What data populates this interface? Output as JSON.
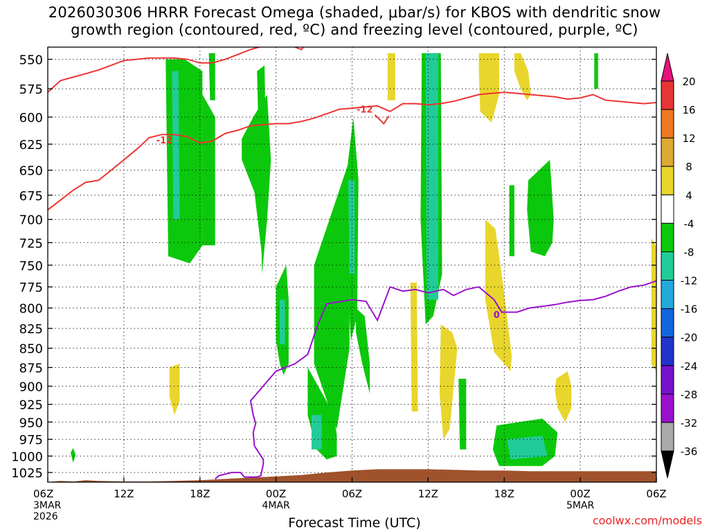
{
  "title": {
    "line1": "2026030306 HRRR Forecast Omega (shaded, μbar/s) for KBOS with dendritic snow",
    "line2": "growth region (contoured, red, ºC) and freezing level (contoured, purple, ºC)"
  },
  "credit": "coolwx.com/models",
  "chart_data": {
    "type": "heatmap",
    "xlabel": "Forecast Time (UTC)",
    "ylabel": "",
    "x_range_hours": [
      0,
      48
    ],
    "y_range_mb": [
      540,
      1040
    ],
    "y_scale": "log-pressure (reversed)",
    "grid": true,
    "x_ticks": [
      {
        "hour": 0,
        "label": "06Z",
        "sub": [
          "3MAR",
          "2026"
        ]
      },
      {
        "hour": 6,
        "label": "12Z",
        "sub": []
      },
      {
        "hour": 12,
        "label": "18Z",
        "sub": []
      },
      {
        "hour": 18,
        "label": "00Z",
        "sub": [
          "4MAR"
        ]
      },
      {
        "hour": 24,
        "label": "06Z",
        "sub": []
      },
      {
        "hour": 30,
        "label": "12Z",
        "sub": []
      },
      {
        "hour": 36,
        "label": "18Z",
        "sub": []
      },
      {
        "hour": 42,
        "label": "00Z",
        "sub": [
          "5MAR"
        ]
      },
      {
        "hour": 48,
        "label": "06Z",
        "sub": []
      }
    ],
    "y_ticks": [
      550,
      575,
      600,
      625,
      650,
      675,
      700,
      725,
      750,
      775,
      800,
      825,
      850,
      875,
      900,
      925,
      950,
      975,
      1000,
      1025
    ],
    "colorbar": {
      "boundaries": [
        20,
        16,
        12,
        8,
        4,
        -4,
        -8,
        -12,
        -16,
        -20,
        -24,
        -28,
        -32,
        -36
      ],
      "colors": [
        "#e8127a",
        "#e53535",
        "#ee7722",
        "#ddaa33",
        "#e8d62c",
        "#ffffff",
        "#0cc80c",
        "#22cc99",
        "#22aadd",
        "#1166dd",
        "#2233cc",
        "#7711cc",
        "#9911cc",
        "#aaaaaa",
        "#000000"
      ]
    },
    "shading_colors": {
      "green": "#0cc80c",
      "teal": "#22cc99",
      "yellow": "#e8d62c",
      "ground": "#a0522d"
    },
    "omega_regions": [
      {
        "level": -8,
        "x": [
          9.3,
          10.8,
          12.2,
          12.2,
          11.2,
          9.5
        ],
        "p": [
          550,
          550,
          560,
          728,
          748,
          740
        ]
      },
      {
        "level": -12,
        "x": [
          9.8,
          10.3,
          10.4,
          9.9
        ],
        "p": [
          560,
          560,
          700,
          700
        ]
      },
      {
        "level": -8,
        "x": [
          12.2,
          13.2,
          13.2,
          12.2
        ],
        "p": [
          580,
          600,
          728,
          728
        ]
      },
      {
        "level": -8,
        "x": [
          12.7,
          13.2,
          13.2,
          12.8
        ],
        "p": [
          545,
          545,
          585,
          585
        ]
      },
      {
        "level": -8,
        "x": [
          15.3,
          16.2,
          17.3,
          17.6,
          17.3,
          16.9,
          16.3,
          15.3
        ],
        "p": [
          620,
          600,
          580,
          640,
          700,
          740,
          672,
          640
        ]
      },
      {
        "level": -8,
        "x": [
          16.5,
          17.1,
          17.3,
          16.9
        ],
        "p": [
          560,
          555,
          700,
          760
        ]
      },
      {
        "level": -8,
        "x": [
          18.0,
          18.8,
          19.0,
          19.0,
          18.6,
          18.3,
          18.0
        ],
        "p": [
          775,
          750,
          790,
          870,
          885,
          870,
          840
        ]
      },
      {
        "level": -12,
        "x": [
          18.3,
          18.7,
          18.7,
          18.3
        ],
        "p": [
          790,
          790,
          845,
          845
        ]
      },
      {
        "level": -8,
        "x": [
          20.5,
          22.6,
          22.8,
          22.8,
          22.0,
          21.2,
          20.5
        ],
        "p": [
          875,
          940,
          970,
          1000,
          1005,
          990,
          940
        ]
      },
      {
        "level": -12,
        "x": [
          20.8,
          21.6,
          21.6,
          20.8
        ],
        "p": [
          940,
          940,
          990,
          990
        ]
      },
      {
        "level": -8,
        "x": [
          21.0,
          23.8,
          23.8,
          22.8,
          21.0
        ],
        "p": [
          750,
          640,
          850,
          960,
          870
        ]
      },
      {
        "level": -8,
        "x": [
          23.6,
          24.1,
          24.5,
          24.4,
          23.9,
          23.6
        ],
        "p": [
          650,
          600,
          660,
          810,
          840,
          760
        ]
      },
      {
        "level": -12,
        "x": [
          23.7,
          24.2,
          24.2,
          23.8
        ],
        "p": [
          660,
          660,
          760,
          760
        ]
      },
      {
        "level": -8,
        "x": [
          24.3,
          25.0,
          25.4,
          25.4,
          24.8,
          24.3
        ],
        "p": [
          800,
          810,
          870,
          910,
          870,
          830
        ]
      },
      {
        "level": -8,
        "x": [
          29.5,
          31.0,
          31.1,
          30.4,
          29.8,
          29.4
        ],
        "p": [
          545,
          545,
          760,
          810,
          820,
          700
        ]
      },
      {
        "level": -12,
        "x": [
          29.8,
          30.8,
          30.8,
          29.9
        ],
        "p": [
          545,
          545,
          790,
          790
        ]
      },
      {
        "level": -8,
        "x": [
          32.4,
          33.0,
          33.0,
          32.5
        ],
        "p": [
          890,
          890,
          990,
          990
        ]
      },
      {
        "level": -8,
        "x": [
          36.4,
          36.8,
          36.8,
          36.4
        ],
        "p": [
          665,
          665,
          740,
          740
        ]
      },
      {
        "level": -8,
        "x": [
          37.9,
          39.6,
          39.9,
          39.8,
          39.2,
          38.1,
          37.8
        ],
        "p": [
          660,
          640,
          700,
          725,
          740,
          735,
          690
        ]
      },
      {
        "level": -8,
        "x": [
          35.4,
          39.0,
          40.2,
          40.0,
          39.0,
          35.6,
          35.1
        ],
        "p": [
          955,
          945,
          965,
          1000,
          1015,
          1015,
          990
        ]
      },
      {
        "level": -12,
        "x": [
          36.2,
          39.0,
          39.4,
          36.5
        ],
        "p": [
          975,
          970,
          1000,
          1005
        ]
      },
      {
        "level": -8,
        "x": [
          43.1,
          43.4,
          43.4,
          43.1
        ],
        "p": [
          545,
          545,
          575,
          575
        ]
      },
      {
        "level": -8,
        "x": [
          1.8,
          2.0,
          2.2,
          2.0
        ],
        "p": [
          995,
          988,
          998,
          1010
        ]
      },
      {
        "level": 4,
        "x": [
          9.6,
          10.4,
          10.4,
          10.0,
          9.6
        ],
        "p": [
          875,
          870,
          920,
          940,
          915
        ]
      },
      {
        "level": 4,
        "x": [
          26.8,
          27.4,
          27.4,
          26.8
        ],
        "p": [
          545,
          545,
          585,
          585
        ]
      },
      {
        "level": 4,
        "x": [
          28.6,
          29.1,
          29.2,
          28.7
        ],
        "p": [
          770,
          770,
          935,
          935
        ]
      },
      {
        "level": 4,
        "x": [
          31.0,
          31.9,
          32.3,
          31.7,
          31.2,
          30.9
        ],
        "p": [
          820,
          830,
          850,
          960,
          975,
          910
        ]
      },
      {
        "level": 4,
        "x": [
          34.0,
          35.6,
          35.6,
          35.0,
          34.1,
          34.0
        ],
        "p": [
          545,
          545,
          580,
          605,
          595,
          560
        ]
      },
      {
        "level": 4,
        "x": [
          34.5,
          35.3,
          35.8,
          36.6,
          36.5,
          35.2,
          34.5
        ],
        "p": [
          700,
          710,
          760,
          860,
          880,
          855,
          790
        ]
      },
      {
        "level": 4,
        "x": [
          36.8,
          37.3,
          37.9,
          38.1,
          37.8,
          37.3,
          36.8
        ],
        "p": [
          545,
          545,
          560,
          580,
          585,
          575,
          560
        ]
      },
      {
        "level": 4,
        "x": [
          40.1,
          41.0,
          41.3,
          41.3,
          40.8,
          40.2,
          40.0
        ],
        "p": [
          890,
          880,
          900,
          930,
          950,
          930,
          905
        ]
      },
      {
        "level": 4,
        "x": [
          47.6,
          48.0,
          48.0,
          47.6
        ],
        "p": [
          720,
          730,
          880,
          870
        ]
      }
    ],
    "dendritic_contours": [
      {
        "level": -12,
        "color": "#ee3333",
        "x": [
          0,
          1,
          2,
          3,
          4,
          5,
          6,
          7,
          8,
          9,
          10,
          11,
          12,
          13,
          14,
          15,
          16,
          17,
          18,
          19,
          20,
          20.5
        ],
        "p": [
          578,
          568,
          565,
          562,
          559,
          555,
          551,
          550,
          549,
          549,
          549,
          550,
          553,
          553,
          550,
          546,
          542,
          539,
          539,
          538,
          542,
          535
        ]
      },
      {
        "level": -12,
        "color": "#ee3333",
        "x": [
          0,
          1,
          2,
          3,
          4,
          5,
          6,
          7,
          8,
          9,
          10,
          11,
          12,
          13,
          14,
          15,
          16,
          17,
          18,
          19,
          20,
          21,
          22,
          23,
          24,
          25,
          26,
          27,
          28,
          29,
          30,
          31,
          32,
          33,
          34,
          35,
          36,
          37,
          38,
          39,
          40,
          41,
          42,
          43,
          44,
          45,
          46,
          47,
          48
        ],
        "p": [
          690,
          680,
          670,
          662,
          660,
          650,
          640,
          630,
          619,
          616,
          616,
          618,
          624,
          622,
          615,
          612,
          608,
          607,
          606,
          606,
          604,
          601,
          597,
          593,
          592,
          591,
          590,
          595,
          588,
          588,
          589,
          588,
          586,
          583,
          580,
          579,
          578,
          579,
          580,
          581,
          582,
          584,
          583,
          580,
          585,
          586,
          587,
          588,
          587
        ]
      },
      {
        "level": -12,
        "color": "#ee3333",
        "x": [
          25.8,
          26.5,
          26.9
        ],
        "p": [
          598,
          606,
          599
        ]
      }
    ],
    "freezing_contour": {
      "level": 0,
      "color": "#9911cc",
      "x": [
        13.2,
        13.5,
        14.5,
        15.2,
        15.5,
        16.5,
        16.8,
        17.0,
        17.0,
        16.3,
        16.2,
        16.4,
        16.2,
        16.0,
        18.0,
        19.5,
        20.5,
        21.3,
        22.0,
        24.0,
        25.1,
        26.0,
        27.0,
        28.0,
        29.0,
        30.0,
        31.2,
        32.0,
        33.0,
        34.0,
        35.2,
        35.8,
        37.0,
        38.0,
        39.0,
        40.0,
        41.0,
        42.0,
        43.0,
        44.0,
        45.0,
        46.0,
        47.0,
        48.0
      ],
      "p": [
        1035,
        1030,
        1025,
        1025,
        1032,
        1032,
        1030,
        1012,
        1005,
        985,
        965,
        952,
        940,
        920,
        880,
        870,
        858,
        820,
        795,
        790,
        792,
        815,
        775,
        780,
        778,
        782,
        778,
        785,
        778,
        775,
        790,
        805,
        805,
        800,
        798,
        796,
        793,
        791,
        790,
        786,
        780,
        775,
        773,
        768
      ]
    },
    "contour_labels": [
      {
        "text": "-12",
        "x": 9.2,
        "p": 621,
        "color": "#ee3333"
      },
      {
        "text": "-12",
        "x": 25.0,
        "p": 593,
        "color": "#ee3333"
      },
      {
        "text": "0",
        "x": 35.4,
        "p": 808,
        "color": "#9911cc"
      }
    ],
    "ground": {
      "x": [
        0,
        1,
        2,
        3,
        4,
        6,
        8,
        10,
        12,
        14,
        16,
        18,
        20,
        22,
        24,
        26,
        28,
        30,
        32,
        34,
        36,
        38,
        40,
        42,
        44,
        46,
        48
      ],
      "p": [
        1040,
        1038,
        1039,
        1037,
        1038,
        1039,
        1039,
        1038,
        1037,
        1035,
        1033,
        1031,
        1029,
        1025,
        1022,
        1020,
        1020,
        1020,
        1021,
        1022,
        1022,
        1023,
        1023,
        1023,
        1023,
        1023,
        1023
      ]
    }
  }
}
